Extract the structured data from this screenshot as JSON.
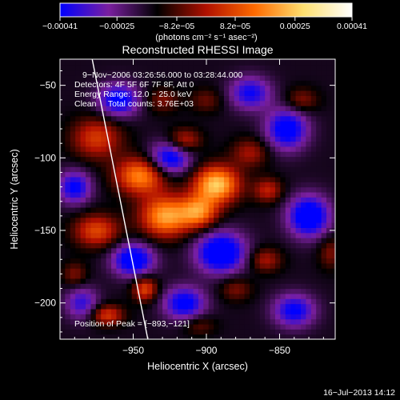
{
  "chart_data": {
    "type": "heatmap",
    "title": "Reconstructed RHESSI Image",
    "xlabel": "Heliocentric X (arcsec)",
    "ylabel": "Heliocentric Y (arcsec)",
    "xlim": [
      -1000,
      -812
    ],
    "ylim": [
      -225,
      -32
    ],
    "x_ticks": [
      -950,
      -900,
      -850
    ],
    "x_tick_labels": [
      "−950",
      "−900",
      "−850"
    ],
    "y_ticks": [
      -50,
      -100,
      -150,
      -200
    ],
    "y_tick_labels": [
      "−50",
      "−100",
      "−150",
      "−200"
    ],
    "colorbar": {
      "range": [
        -0.00041,
        0.00041
      ],
      "ticks": [
        -0.00041,
        -0.00025,
        -8.2e-05,
        8.2e-05,
        0.00025,
        0.00041
      ],
      "tick_labels": [
        "−0.00041",
        "−0.00025",
        "−8.2e−05",
        "8.2e−05",
        "0.00025",
        "0.00041"
      ],
      "unit_label": "(photons cm⁻² s⁻¹ asec⁻²)",
      "colors": [
        "#0000ff",
        "#7a1fa0",
        "#000000",
        "#b01000",
        "#ff6a00",
        "#ffe070",
        "#ffffff"
      ]
    },
    "annotations": [
      "9−Nov−2006 03:26:56.000 to 03:28:44.000",
      "Detectors: 4F 5F 6F 7F 8F, Att 0",
      "Energy Range: 12.0 − 25.0 keV",
      "Clean     Total counts: 3.76E+03",
      "Position of Peak = [−893,−121]"
    ],
    "peak": {
      "x": -893,
      "y": -121
    },
    "sources": [
      {
        "x": -893,
        "y": -118,
        "value": 0.00041,
        "sx": 11,
        "sy": 9
      },
      {
        "x": -928,
        "y": -140,
        "value": 0.00036,
        "sx": 12,
        "sy": 10
      },
      {
        "x": -905,
        "y": -137,
        "value": 0.0003,
        "sx": 9,
        "sy": 8
      },
      {
        "x": -945,
        "y": -112,
        "value": 0.00033,
        "sx": 12,
        "sy": 9
      },
      {
        "x": -975,
        "y": -86,
        "value": 0.00022,
        "sx": 12,
        "sy": 10
      },
      {
        "x": -975,
        "y": -150,
        "value": 0.00024,
        "sx": 11,
        "sy": 8
      },
      {
        "x": -915,
        "y": -88,
        "value": 0.00019,
        "sx": 8,
        "sy": 6
      },
      {
        "x": -870,
        "y": -96,
        "value": 0.00015,
        "sx": 9,
        "sy": 7
      },
      {
        "x": -858,
        "y": -122,
        "value": 0.00018,
        "sx": 7,
        "sy": 6
      },
      {
        "x": -860,
        "y": -170,
        "value": 0.00016,
        "sx": 8,
        "sy": 6
      },
      {
        "x": -880,
        "y": -190,
        "value": 0.00012,
        "sx": 8,
        "sy": 6
      },
      {
        "x": -942,
        "y": -190,
        "value": 0.00024,
        "sx": 6,
        "sy": 6
      },
      {
        "x": -968,
        "y": -208,
        "value": 0.00022,
        "sx": 8,
        "sy": 5
      },
      {
        "x": -835,
        "y": -60,
        "value": 0.00013,
        "sx": 8,
        "sy": 6
      },
      {
        "x": -815,
        "y": -165,
        "value": 0.00012,
        "sx": 6,
        "sy": 8
      },
      {
        "x": -900,
        "y": -60,
        "value": 0.0001,
        "sx": 8,
        "sy": 6
      },
      {
        "x": -930,
        "y": -60,
        "value": 0.00012,
        "sx": 8,
        "sy": 6
      },
      {
        "x": -990,
        "y": -180,
        "value": 0.00012,
        "sx": 6,
        "sy": 6
      },
      {
        "x": -905,
        "y": -215,
        "value": 0.0001,
        "sx": 8,
        "sy": 5
      },
      {
        "x": -925,
        "y": -100,
        "value": -0.0003,
        "sx": 10,
        "sy": 8
      },
      {
        "x": -960,
        "y": -60,
        "value": -0.00028,
        "sx": 10,
        "sy": 8
      },
      {
        "x": -950,
        "y": -170,
        "value": -0.00032,
        "sx": 10,
        "sy": 8
      },
      {
        "x": -890,
        "y": -165,
        "value": -0.00035,
        "sx": 12,
        "sy": 10
      },
      {
        "x": -845,
        "y": -80,
        "value": -0.0003,
        "sx": 10,
        "sy": 10
      },
      {
        "x": -830,
        "y": -140,
        "value": -0.00034,
        "sx": 10,
        "sy": 10
      },
      {
        "x": -990,
        "y": -120,
        "value": -0.00026,
        "sx": 8,
        "sy": 8
      },
      {
        "x": -915,
        "y": -200,
        "value": -0.00028,
        "sx": 10,
        "sy": 8
      },
      {
        "x": -870,
        "y": -55,
        "value": -0.00024,
        "sx": 10,
        "sy": 8
      },
      {
        "x": -985,
        "y": -200,
        "value": -0.0002,
        "sx": 8,
        "sy": 8
      },
      {
        "x": -840,
        "y": -205,
        "value": -0.00026,
        "sx": 10,
        "sy": 8
      }
    ],
    "limb_line": [
      [
        -978,
        -32
      ],
      [
        -940,
        -225
      ]
    ],
    "grid": false
  },
  "footer": {
    "timestamp": "16−Jul−2013 14:12"
  }
}
